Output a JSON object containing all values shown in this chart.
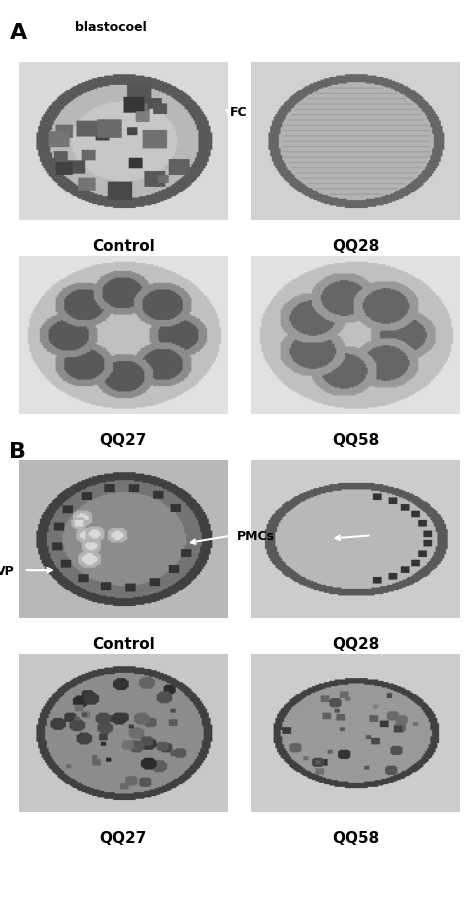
{
  "fig_width": 4.74,
  "fig_height": 9.03,
  "background_color": "#ffffff",
  "section_A_label": "A",
  "section_B_label": "B",
  "panel_labels_A": [
    "Control",
    "QQ28",
    "QQ27",
    "QQ58"
  ],
  "panel_labels_B": [
    "Control",
    "QQ28",
    "QQ27",
    "QQ58"
  ],
  "annotation_blastocoel": "blastocoel",
  "annotation_FC": "FC",
  "annotation_VP": "VP",
  "annotation_PMCs": "PMCs",
  "label_fontsize": 11,
  "section_fontsize": 16,
  "annotation_fontsize": 9
}
